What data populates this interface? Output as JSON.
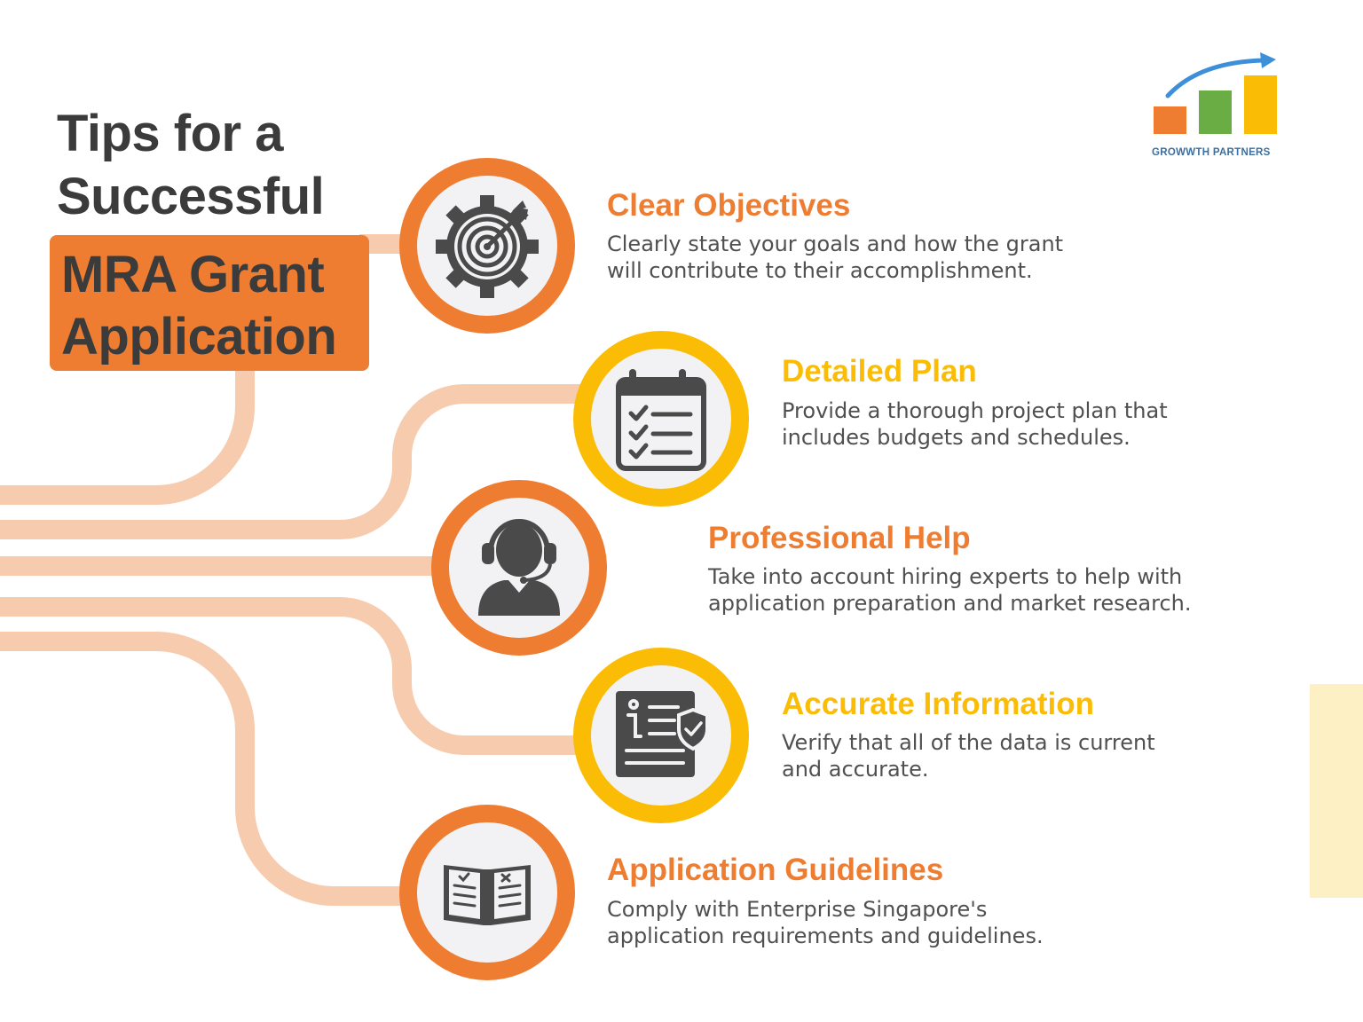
{
  "colors": {
    "orange": "#ee7d31",
    "yellow": "#fbbc05",
    "text_dark": "#3b3b3b",
    "text_body": "#505050",
    "connector": "#f6cbae",
    "icon_bg": "#f2f2f4",
    "icon": "#4a4a4a"
  },
  "title": {
    "line1": "Tips for a",
    "line2": "Successful",
    "box_line1": "MRA Grant",
    "box_line2": "Application"
  },
  "logo": {
    "text": "GROWWTH PARTNERS",
    "bar_colors": [
      "#ee7d31",
      "#6aad44",
      "#fbbc05"
    ],
    "arrow_color": "#3d8fd9"
  },
  "tips": [
    {
      "heading": "Clear Objectives",
      "color": "orange",
      "icon": "target-gear-icon",
      "lines": [
        "Clearly state your goals and how the grant",
        "will contribute to their accomplishment."
      ]
    },
    {
      "heading": "Detailed Plan",
      "color": "yellow",
      "icon": "checklist-calendar-icon",
      "lines": [
        "Provide a thorough project plan that",
        "includes budgets and schedules."
      ]
    },
    {
      "heading": "Professional Help",
      "color": "orange",
      "icon": "headset-support-icon",
      "lines": [
        "Take into account hiring experts to help with",
        "application preparation and market research."
      ]
    },
    {
      "heading": "Accurate Information",
      "color": "yellow",
      "icon": "info-document-shield-icon",
      "lines": [
        "Verify that all of the data is current",
        "and accurate."
      ]
    },
    {
      "heading": "Application Guidelines",
      "color": "orange",
      "icon": "open-book-icon",
      "lines": [
        "Comply with Enterprise Singapore's",
        "application requirements and guidelines."
      ]
    }
  ]
}
